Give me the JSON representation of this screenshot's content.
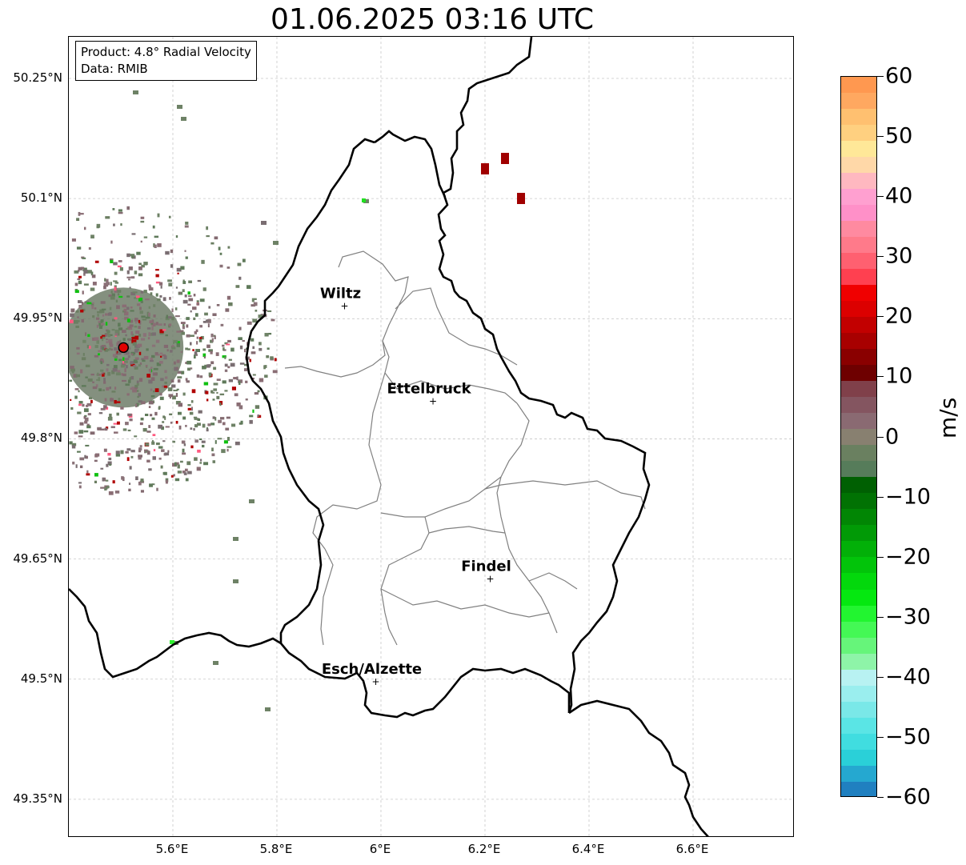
{
  "title": "01.06.2025 03:16 UTC",
  "info": {
    "product": "Product: 4.8° Radial Velocity",
    "data": "Data: RMIB"
  },
  "map": {
    "lat_ticks": [
      "50.25°N",
      "50.1°N",
      "49.95°N",
      "49.8°N",
      "49.65°N",
      "49.5°N",
      "49.35°N"
    ],
    "lon_ticks": [
      "5.6°E",
      "5.8°E",
      "6°E",
      "6.2°E",
      "6.4°E",
      "6.6°E"
    ],
    "cities": [
      {
        "name": "Wiltz",
        "lon": 5.93,
        "lat": 49.966
      },
      {
        "name": "Ettelbruck",
        "lon": 6.1,
        "lat": 49.847
      },
      {
        "name": "Findel",
        "lon": 6.21,
        "lat": 49.625
      },
      {
        "name": "Esch/Alzette",
        "lon": 5.99,
        "lat": 49.497
      }
    ],
    "radar_site": {
      "lon": 5.505,
      "lat": 49.914
    },
    "border_color": "#000000",
    "canton_color": "#808080"
  },
  "colorbar": {
    "label": "m/s",
    "min": -60,
    "max": 60,
    "tick_labels": [
      "60",
      "50",
      "40",
      "30",
      "20",
      "10",
      "0",
      "−10",
      "−20",
      "−30",
      "−40",
      "−50",
      "−60"
    ],
    "colors": [
      "#2080c0",
      "#25a8d0",
      "#2ad0d8",
      "#40dde0",
      "#5ae5e5",
      "#7ae8e8",
      "#9aeeee",
      "#b8f2f2",
      "#8ef4a8",
      "#66f57a",
      "#44f855",
      "#22f530",
      "#05e810",
      "#03d80c",
      "#02c40a",
      "#02b008",
      "#019a06",
      "#018604",
      "#017203",
      "#006002",
      "#567c5a",
      "#6a8060",
      "#888070",
      "#8a6a72",
      "#845560",
      "#80404a",
      "#6e0000",
      "#8a0000",
      "#a80000",
      "#c20000",
      "#dc0000",
      "#f00000",
      "#ff4050",
      "#ff6070",
      "#ff7a8a",
      "#ff8aa0",
      "#ff90c8",
      "#ffa0d0",
      "#ffb8c0",
      "#ffd8a8",
      "#ffe898",
      "#ffd080",
      "#ffc070",
      "#ffa860",
      "#ff9850"
    ]
  }
}
